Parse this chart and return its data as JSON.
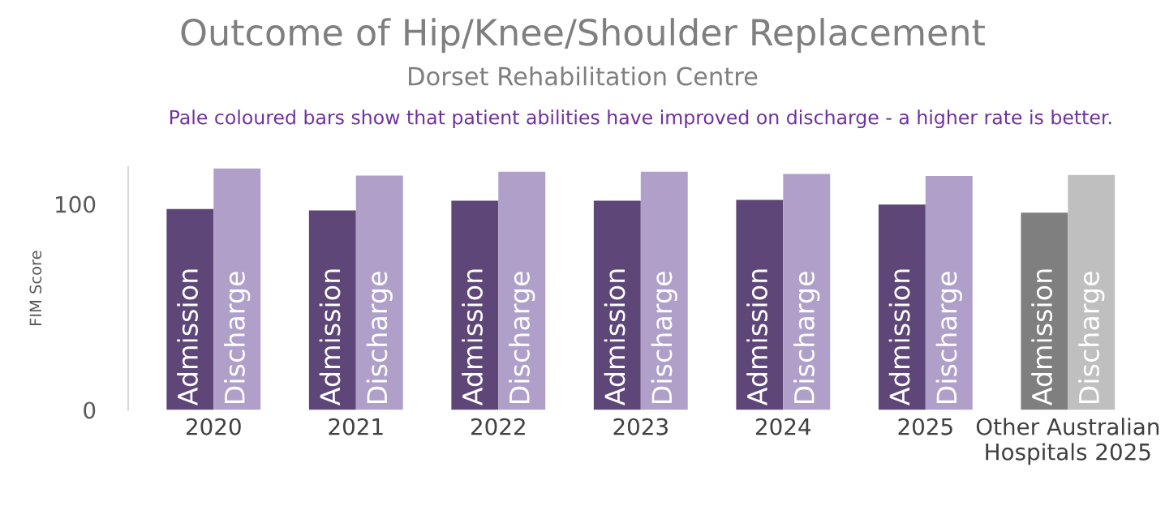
{
  "chart_data": {
    "type": "bar",
    "title": "Outcome of Hip/Knee/Shoulder Replacement",
    "subtitle": "Dorset Rehabilitation Centre",
    "annotations": [
      "Pale coloured bars show that patient abilities have improved on discharge - a higher rate is better."
    ],
    "ylabel": "FIM Score",
    "categories": [
      "2020",
      "2021",
      "2022",
      "2023",
      "2024",
      "2025",
      "Other Australian\nHospitals 2025"
    ],
    "series": [
      {
        "name": "Admission",
        "colors": [
          "#5e4678",
          "#5e4678",
          "#5e4678",
          "#5e4678",
          "#5e4678",
          "#5e4678",
          "#7f7f7f"
        ],
        "values": [
          97.6,
          96.9,
          101.6,
          101.6,
          102,
          99.7,
          95.8
        ]
      },
      {
        "name": "Discharge",
        "colors": [
          "#b09fc8",
          "#b09fc8",
          "#b09fc8",
          "#b09fc8",
          "#b09fc8",
          "#b09fc8",
          "#bfbfbf"
        ],
        "values": [
          117.3,
          113.8,
          115.7,
          115.7,
          114.6,
          113.6,
          114.1
        ]
      }
    ],
    "ylim": [
      0,
      118
    ],
    "yticks": [
      0,
      100
    ],
    "grid": false,
    "legend": false
  }
}
